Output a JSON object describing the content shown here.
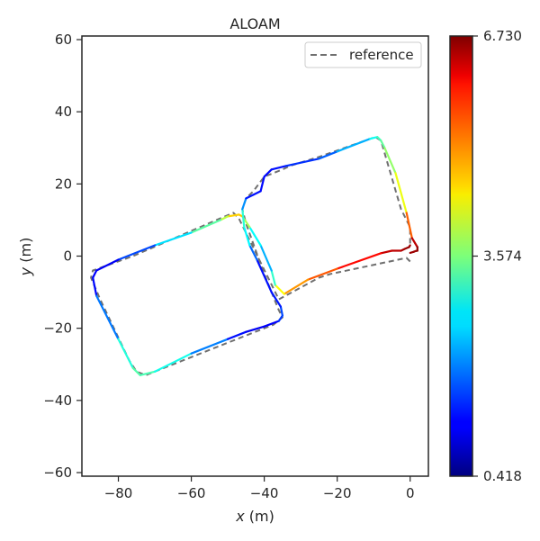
{
  "chart_data": {
    "type": "line",
    "title": "ALOAM",
    "xlabel_var": "x",
    "xlabel_unit": " (m)",
    "ylabel_var": "y",
    "ylabel_unit": " (m)",
    "xlim": [
      -90,
      5
    ],
    "ylim": [
      -61,
      61
    ],
    "xticks": [
      -80,
      -60,
      -40,
      -20,
      0
    ],
    "yticks": [
      -60,
      -40,
      -20,
      0,
      20,
      40,
      60
    ],
    "xtick_labels": [
      "−80",
      "−60",
      "−40",
      "−20",
      "0"
    ],
    "ytick_labels": [
      "−60",
      "−40",
      "−20",
      "0",
      "20",
      "40",
      "60"
    ],
    "grid": false,
    "legend": {
      "position": "top-right",
      "entries": [
        "reference"
      ]
    },
    "colorbar": {
      "colormap": "jet",
      "min": 0.418,
      "max": 6.73,
      "ticks": [
        6.73,
        3.574,
        0.418
      ],
      "tick_labels": [
        "6.730",
        "3.574",
        "0.418"
      ]
    },
    "series": [
      {
        "name": "reference",
        "style": "dashed",
        "color": "#707070",
        "x": [
          0,
          -1,
          -22,
          -25,
          -36,
          -47,
          -48.5,
          -76,
          -87,
          -87.5,
          -85,
          -77,
          -75,
          -72.5,
          -50,
          -37.5,
          -35,
          -36,
          -40,
          -45,
          -46,
          -45,
          -43,
          -40,
          -35,
          -33,
          -25,
          -9.5,
          -8,
          -2.5,
          0,
          0
        ],
        "y": [
          -1.5,
          -0.5,
          -5,
          -6,
          -12,
          10.5,
          12,
          0,
          -4,
          -6,
          -12,
          -29,
          -32,
          -33,
          -24,
          -19,
          -17,
          -15,
          -5,
          9,
          13,
          16,
          18,
          22,
          24,
          25,
          27.5,
          33,
          32,
          13,
          8,
          3
        ]
      },
      {
        "name": "",
        "style": "colormapped",
        "x": [
          0,
          -0.3,
          -1.5,
          -2.5,
          -5,
          -8,
          -20,
          -28,
          -34.5,
          -37,
          -38,
          -41,
          -44,
          -46,
          -47,
          -50,
          -52,
          -60,
          -70,
          -80,
          -86,
          -87,
          -86,
          -80,
          -76,
          -74,
          -70,
          -60,
          -50,
          -45,
          -40,
          -36,
          -35,
          -35.5,
          -38,
          -42,
          -44,
          -45.5,
          -46,
          -45,
          -43,
          -41,
          -40,
          -38,
          -34,
          -25,
          -20,
          -11,
          -9,
          -8,
          -7,
          -4,
          -1,
          0.5,
          2,
          2,
          1.5,
          1,
          0
        ],
        "y": [
          3,
          2.5,
          2,
          1.5,
          1.5,
          0.8,
          -3.5,
          -6.5,
          -10.5,
          -8,
          -4,
          3,
          8,
          11,
          11.5,
          11,
          10,
          6.5,
          3,
          -1,
          -4,
          -6,
          -11,
          -23,
          -31,
          -33,
          -32,
          -27,
          -23,
          -21,
          -19.5,
          -18,
          -16.5,
          -14,
          -10,
          -1,
          3,
          8,
          13,
          16,
          17,
          18,
          22,
          24,
          25,
          27,
          29,
          32.5,
          33,
          32,
          30,
          23,
          12,
          5,
          2.5,
          1.5,
          1.4,
          1.2,
          0.9
        ],
        "values": [
          6.6,
          6.5,
          6.7,
          6.3,
          6.4,
          6.2,
          5.6,
          5.2,
          4.8,
          3.9,
          2.3,
          2.3,
          3.3,
          4.4,
          5.0,
          4.3,
          3.6,
          3.1,
          2.1,
          1.2,
          1.1,
          1.3,
          1.2,
          2.7,
          3.3,
          3.3,
          3.2,
          2.6,
          1.4,
          1.2,
          1.1,
          1.3,
          1.8,
          1.5,
          1.2,
          1.4,
          2.3,
          3.2,
          2.9,
          1.3,
          1.4,
          1.2,
          1.3,
          1.2,
          1.4,
          1.6,
          2.0,
          2.6,
          3.1,
          3.3,
          3.5,
          3.9,
          4.6,
          6.1,
          6.6,
          6.7,
          6.5,
          6.6,
          6.5
        ]
      }
    ]
  }
}
